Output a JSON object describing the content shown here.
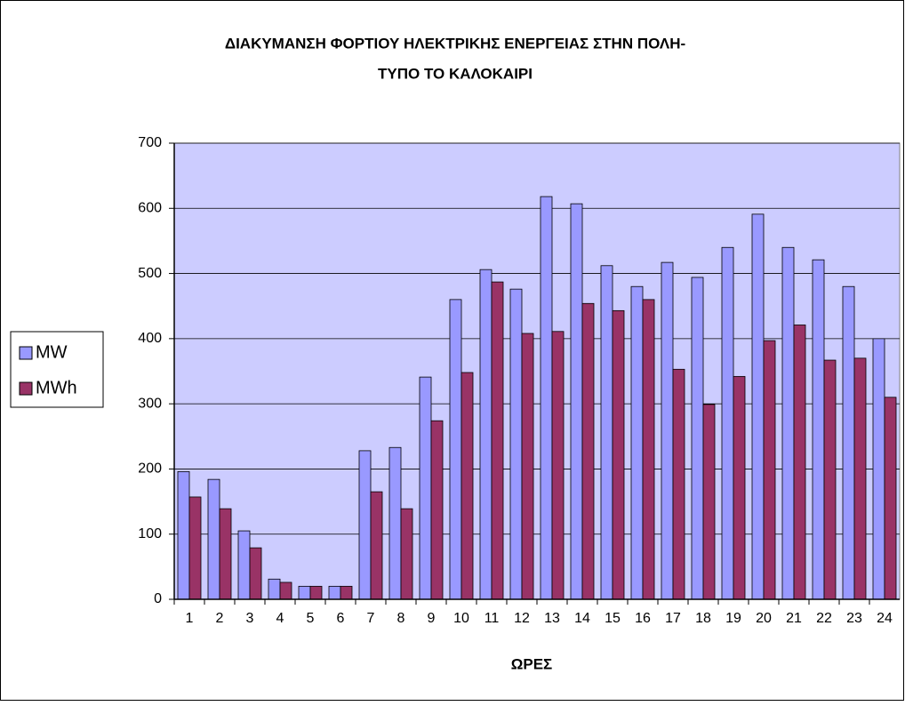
{
  "chart_data": {
    "type": "bar",
    "title": [
      "ΔΙΑΚΥΜΑΝΣΗ ΦΟΡΤΙΟΥ ΗΛΕΚΤΡΙΚΗΣ ΕΝΕΡΓΕΙΑΣ ΣΤΗΝ ΠΟΛΗ-",
      "ΤΥΠΟ ΤΟ ΚΑΛΟΚΑΙΡΙ"
    ],
    "x_label": "ΩΡΕΣ",
    "categories": [
      "1",
      "2",
      "3",
      "4",
      "5",
      "6",
      "7",
      "8",
      "9",
      "10",
      "11",
      "12",
      "13",
      "14",
      "15",
      "16",
      "17",
      "18",
      "19",
      "20",
      "21",
      "22",
      "23",
      "24"
    ],
    "series": [
      {
        "name": "MW",
        "color": "#9999ff",
        "values": [
          196,
          184,
          105,
          31,
          20,
          20,
          228,
          233,
          341,
          460,
          506,
          476,
          618,
          607,
          512,
          480,
          517,
          494,
          540,
          591,
          540,
          521,
          480,
          400
        ]
      },
      {
        "name": "MWh",
        "color": "#993366",
        "values": [
          157,
          139,
          79,
          26,
          20,
          20,
          165,
          139,
          274,
          348,
          487,
          408,
          411,
          454,
          443,
          460,
          353,
          299,
          342,
          397,
          421,
          367,
          370,
          310
        ]
      }
    ],
    "ylim": [
      0,
      700
    ],
    "yticks": [
      0,
      100,
      200,
      300,
      400,
      500,
      600,
      700
    ],
    "grid": true,
    "legend": "left"
  }
}
